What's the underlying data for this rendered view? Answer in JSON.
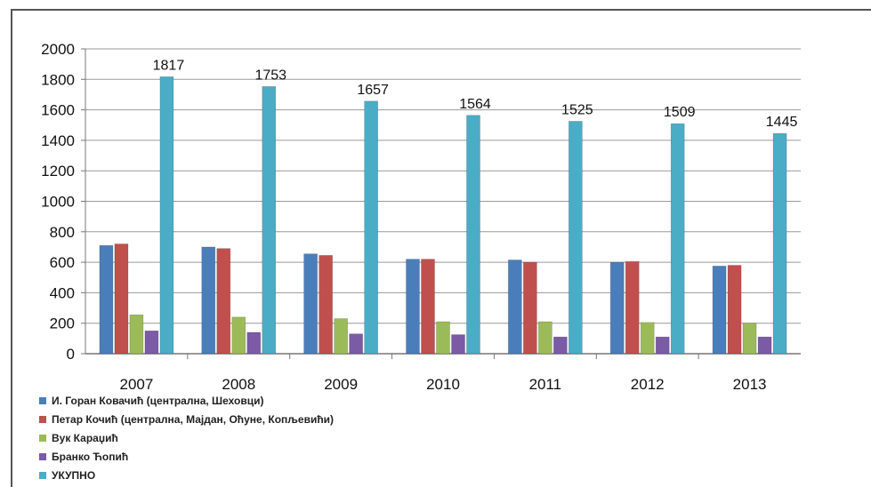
{
  "chart_data": {
    "type": "bar",
    "title": "",
    "xlabel": "",
    "ylabel": "",
    "ylim": [
      0,
      2000
    ],
    "yticks": [
      0,
      200,
      400,
      600,
      800,
      1000,
      1200,
      1400,
      1600,
      1800,
      2000
    ],
    "grid": true,
    "legend_position": "bottom-left",
    "categories": [
      "2007",
      "2008",
      "2009",
      "2010",
      "2011",
      "2012",
      "2013"
    ],
    "series": [
      {
        "name": "И. Горан Ковачић (централна, Шеховци)",
        "color": "#4a7ebb",
        "values": [
          710,
          700,
          655,
          620,
          615,
          600,
          575
        ]
      },
      {
        "name": "Петар Кочић (централна, Мајдан, Оћуне, Копљевићи)",
        "color": "#c0504d",
        "values": [
          720,
          690,
          645,
          620,
          600,
          605,
          580
        ]
      },
      {
        "name": "Вук Караџић",
        "color": "#9bbb59",
        "values": [
          255,
          240,
          230,
          210,
          210,
          205,
          200
        ]
      },
      {
        "name": "Бранко Ћопић",
        "color": "#7b5aa6",
        "values": [
          150,
          140,
          130,
          125,
          110,
          110,
          110
        ]
      },
      {
        "name": "УКУПНО",
        "color": "#4bacc6",
        "values": [
          1817,
          1753,
          1657,
          1564,
          1525,
          1509,
          1445
        ],
        "data_labels": [
          "1817",
          "1753",
          "1657",
          "1564",
          "1525",
          "1509",
          "1445"
        ]
      }
    ]
  }
}
